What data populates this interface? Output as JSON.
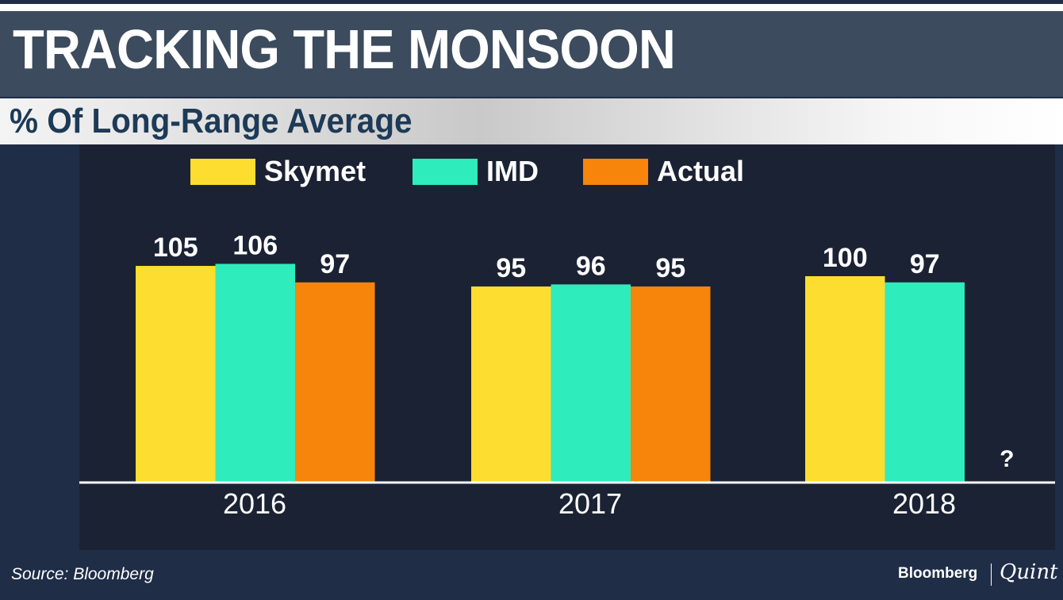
{
  "title": "TRACKING THE MONSOON",
  "subtitle": "% Of Long-Range Average",
  "source": "Source: Bloomberg",
  "logo": {
    "left": "Bloomberg",
    "right": "Quint"
  },
  "chart_data": {
    "type": "bar",
    "title": "TRACKING THE MONSOON",
    "ylabel": "% Of Long-Range Average",
    "categories": [
      "2016",
      "2017",
      "2018"
    ],
    "series": [
      {
        "name": "Skymet",
        "color": "#fddd2f",
        "values": [
          105,
          95,
          100
        ]
      },
      {
        "name": "IMD",
        "color": "#2eecbb",
        "values": [
          106,
          96,
          97
        ]
      },
      {
        "name": "Actual",
        "color": "#f7840b",
        "values": [
          97,
          95,
          null
        ]
      }
    ],
    "missing_label": "?",
    "ylim": [
      0,
      110
    ],
    "legend": "top",
    "grid": false
  }
}
